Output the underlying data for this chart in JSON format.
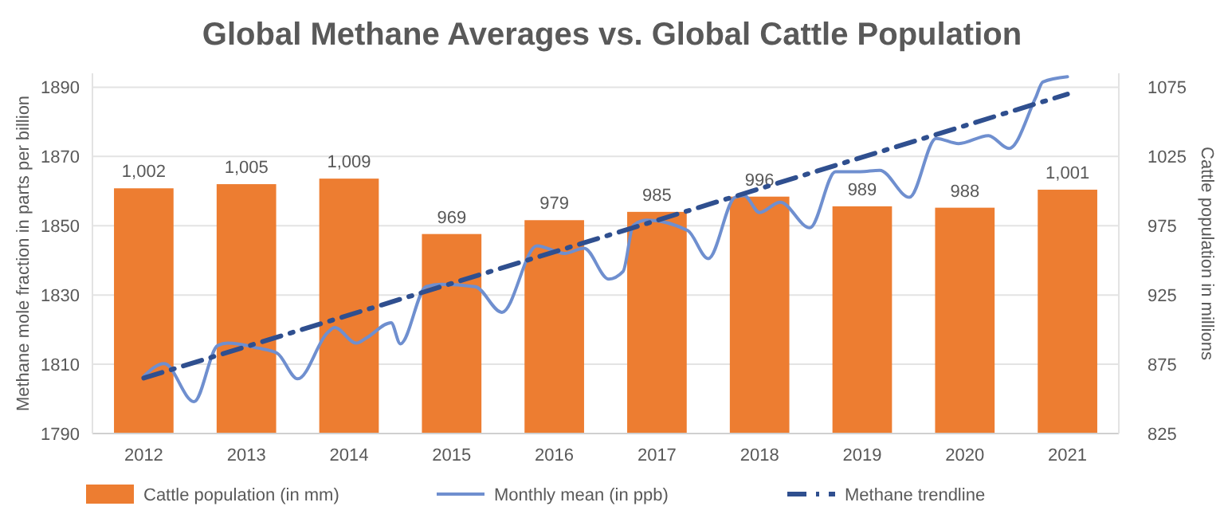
{
  "chart_data": {
    "type": "bar",
    "title": "Global Methane Averages vs. Global Cattle Population",
    "ylabel": "Methane mole fraction in parts per billion",
    "y2label": "Cattle population in millions",
    "xlim": [
      2011.5,
      2021.5
    ],
    "xticks": [
      2012,
      2013,
      2014,
      2015,
      2016,
      2017,
      2018,
      2019,
      2020,
      2021
    ],
    "ylim": [
      1790,
      1894
    ],
    "yticks": [
      1790,
      1810,
      1830,
      1850,
      1870,
      1890
    ],
    "y2lim": [
      825,
      1085
    ],
    "y2ticks": [
      825,
      875,
      925,
      975,
      1025,
      1075
    ],
    "grid": "y",
    "legend": "bottom",
    "series": [
      {
        "name": "Cattle population (in mm)",
        "axis": "y2",
        "color": "#ed7d31",
        "x": [
          2012,
          2013,
          2014,
          2015,
          2016,
          2017,
          2018,
          2019,
          2020,
          2021
        ],
        "values": [
          1002,
          1005,
          1009,
          969,
          979,
          985,
          996,
          989,
          988,
          1001
        ],
        "value_labels": [
          "1,002",
          "1,005",
          "1,009",
          "969",
          "979",
          "985",
          "996",
          "989",
          "988",
          "1,001"
        ]
      },
      {
        "name": "Monthly mean (in ppb)",
        "type": "line",
        "axis": "y",
        "color": "#6f8fcf",
        "line_style": "solid",
        "x": [
          2012.0,
          2012.2,
          2012.49,
          2012.72,
          2012.82,
          2013.11,
          2013.3,
          2013.5,
          2013.79,
          2013.86,
          2014.07,
          2014.17,
          2014.41,
          2014.5,
          2014.75,
          2014.9,
          2015.23,
          2015.49,
          2015.83,
          2016.1,
          2016.29,
          2016.53,
          2016.67,
          2016.77,
          2016.9,
          2017.3,
          2017.5,
          2017.76,
          2017.85,
          2018.0,
          2018.2,
          2018.49,
          2018.74,
          2018.98,
          2019.17,
          2019.46,
          2019.72,
          2019.94,
          2020.23,
          2020.43,
          2020.69,
          2020.76,
          2021.0
        ],
        "values": [
          1806.5,
          1810.2,
          1799.2,
          1815.4,
          1816.1,
          1814.7,
          1813.2,
          1805.8,
          1819.1,
          1820.6,
          1816.1,
          1817.6,
          1822,
          1815.9,
          1832.4,
          1833.1,
          1832.4,
          1825,
          1844.2,
          1842,
          1843.5,
          1834.6,
          1836.8,
          1850.1,
          1851.6,
          1848.6,
          1840.5,
          1858.2,
          1858.7,
          1853.8,
          1856.8,
          1849.4,
          1865.6,
          1865.6,
          1866,
          1858.2,
          1875.2,
          1873.7,
          1876,
          1872.3,
          1887,
          1891.5,
          1893
        ]
      },
      {
        "name": "Methane trendline",
        "type": "line",
        "axis": "y",
        "color": "#2f4f8f",
        "line_style": "dashed",
        "x": [
          2012.0,
          2021.0
        ],
        "values": [
          1806,
          1888
        ]
      }
    ]
  }
}
